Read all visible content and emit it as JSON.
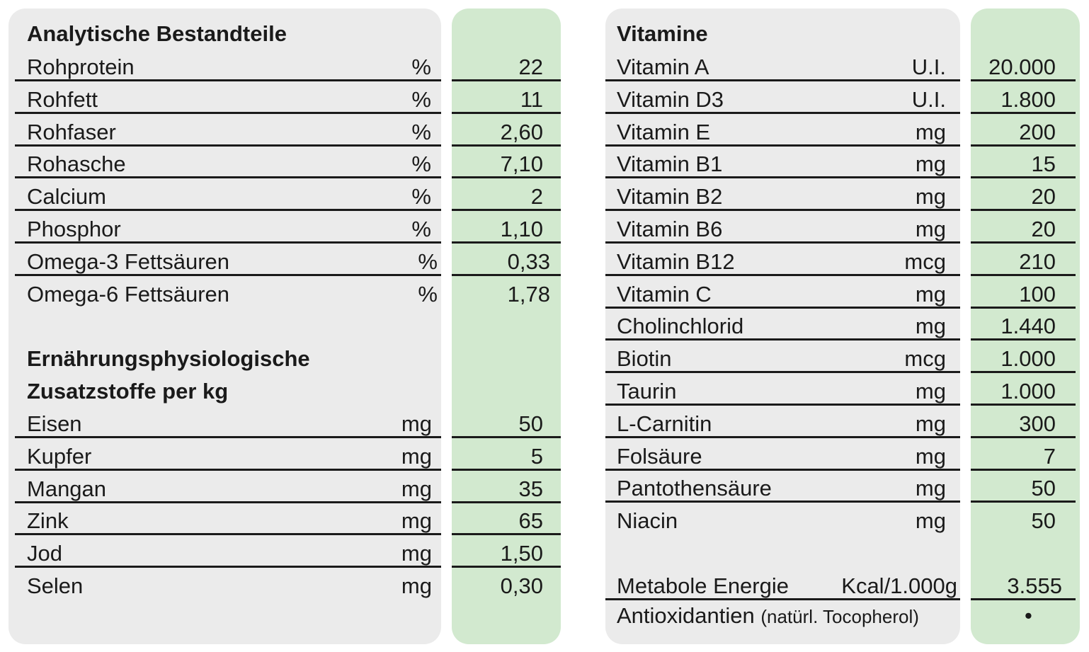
{
  "left": {
    "heading": "Analytische Bestandteile",
    "rows": [
      {
        "label": "Rohprotein",
        "unit": "%",
        "value": "22"
      },
      {
        "label": "Rohfett",
        "unit": "%",
        "value": "11"
      },
      {
        "label": "Rohfaser",
        "unit": "%",
        "value": "2,60"
      },
      {
        "label": "Rohasche",
        "unit": "%",
        "value": "7,10"
      },
      {
        "label": "Calcium",
        "unit": "%",
        "value": "2"
      },
      {
        "label": "Phosphor",
        "unit": "%",
        "value": "1,10"
      },
      {
        "label": "Omega-3 Fettsäuren",
        "unit": "%",
        "value": "0,33"
      },
      {
        "label": "Omega-6 Fettsäuren",
        "unit": "%",
        "value": "1,78"
      }
    ],
    "heading2_line1": "Ernährungsphysiologische",
    "heading2_line2": "Zusatzstoffe per kg",
    "rows2": [
      {
        "label": "Eisen",
        "unit": "mg",
        "value": "50"
      },
      {
        "label": "Kupfer",
        "unit": "mg",
        "value": "5"
      },
      {
        "label": "Mangan",
        "unit": "mg",
        "value": "35"
      },
      {
        "label": "Zink",
        "unit": "mg",
        "value": "65"
      },
      {
        "label": "Jod",
        "unit": "mg",
        "value": "1,50"
      },
      {
        "label": "Selen",
        "unit": "mg",
        "value": "0,30"
      }
    ]
  },
  "right": {
    "heading": "Vitamine",
    "rows": [
      {
        "label": "Vitamin A",
        "unit": "U.I.",
        "value": "20.000"
      },
      {
        "label": "Vitamin D3",
        "unit": "U.I.",
        "value": "1.800"
      },
      {
        "label": "Vitamin E",
        "unit": "mg",
        "value": "200"
      },
      {
        "label": "Vitamin B1",
        "unit": "mg",
        "value": "15"
      },
      {
        "label": "Vitamin B2",
        "unit": "mg",
        "value": "20"
      },
      {
        "label": "Vitamin B6",
        "unit": "mg",
        "value": "20"
      },
      {
        "label": "Vitamin B12",
        "unit": "mcg",
        "value": "210"
      },
      {
        "label": "Vitamin C",
        "unit": "mg",
        "value": "100"
      },
      {
        "label": "Cholinchlorid",
        "unit": "mg",
        "value": "1.440"
      },
      {
        "label": "Biotin",
        "unit": "mcg",
        "value": "1.000"
      },
      {
        "label": "Taurin",
        "unit": "mg",
        "value": "1.000"
      },
      {
        "label": "L-Carnitin",
        "unit": "mg",
        "value": "300"
      },
      {
        "label": "Folsäure",
        "unit": "mg",
        "value": "7"
      },
      {
        "label": "Pantothensäure",
        "unit": "mg",
        "value": "50"
      },
      {
        "label": "Niacin",
        "unit": "mg",
        "value": "50"
      }
    ],
    "energy": {
      "label": "Metabole Energie",
      "unit": "Kcal/1.000g",
      "value": "3.555"
    },
    "antiox": {
      "label": "Antioxidantien",
      "note": "(natürl. Tocopherol)",
      "value": "•"
    }
  },
  "colors": {
    "panel_gray": "#ebebeb",
    "panel_green": "#d2e9cf",
    "text": "#1a1a1a"
  }
}
